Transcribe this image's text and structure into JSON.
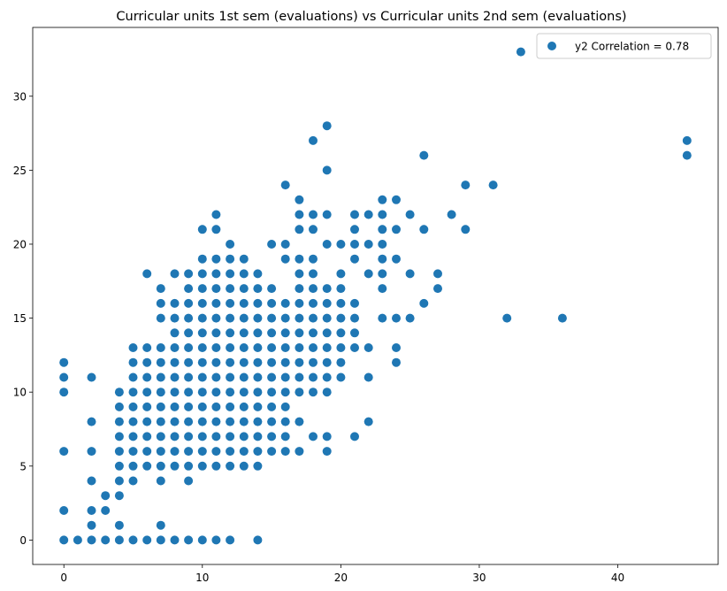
{
  "chart_data": {
    "type": "scatter",
    "title": "Curricular units 1st sem (evaluations) vs Curricular units 2nd sem (evaluations)",
    "xlabel": "",
    "ylabel": "",
    "xlim": [
      -2.25,
      47.25
    ],
    "ylim": [
      -1.65,
      34.65
    ],
    "xticks": [
      0,
      10,
      20,
      30,
      40
    ],
    "yticks": [
      0,
      5,
      10,
      15,
      20,
      25,
      30
    ],
    "grid": false,
    "legend": {
      "placement": "top-right",
      "entries": [
        "y2 Correlation = 0.78"
      ]
    },
    "series": [
      {
        "name": "y2 Correlation = 0.78",
        "color": "#1f77b4",
        "points": [
          [
            0,
            0
          ],
          [
            0,
            2
          ],
          [
            0,
            6
          ],
          [
            0,
            10
          ],
          [
            0,
            11
          ],
          [
            0,
            12
          ],
          [
            1,
            0
          ],
          [
            2,
            0
          ],
          [
            2,
            1
          ],
          [
            2,
            2
          ],
          [
            2,
            4
          ],
          [
            2,
            6
          ],
          [
            2,
            8
          ],
          [
            2,
            11
          ],
          [
            3,
            0
          ],
          [
            3,
            2
          ],
          [
            3,
            3
          ],
          [
            4,
            0
          ],
          [
            4,
            1
          ],
          [
            4,
            3
          ],
          [
            4,
            4
          ],
          [
            4,
            5
          ],
          [
            4,
            6
          ],
          [
            4,
            7
          ],
          [
            4,
            8
          ],
          [
            4,
            9
          ],
          [
            4,
            10
          ],
          [
            5,
            0
          ],
          [
            5,
            4
          ],
          [
            5,
            5
          ],
          [
            5,
            6
          ],
          [
            5,
            7
          ],
          [
            5,
            8
          ],
          [
            5,
            9
          ],
          [
            5,
            10
          ],
          [
            5,
            11
          ],
          [
            5,
            12
          ],
          [
            5,
            13
          ],
          [
            6,
            0
          ],
          [
            6,
            5
          ],
          [
            6,
            6
          ],
          [
            6,
            7
          ],
          [
            6,
            8
          ],
          [
            6,
            9
          ],
          [
            6,
            10
          ],
          [
            6,
            11
          ],
          [
            6,
            12
          ],
          [
            6,
            13
          ],
          [
            6,
            18
          ],
          [
            7,
            0
          ],
          [
            7,
            1
          ],
          [
            7,
            4
          ],
          [
            7,
            5
          ],
          [
            7,
            6
          ],
          [
            7,
            7
          ],
          [
            7,
            8
          ],
          [
            7,
            9
          ],
          [
            7,
            10
          ],
          [
            7,
            11
          ],
          [
            7,
            12
          ],
          [
            7,
            13
          ],
          [
            7,
            15
          ],
          [
            7,
            16
          ],
          [
            7,
            17
          ],
          [
            8,
            0
          ],
          [
            8,
            5
          ],
          [
            8,
            6
          ],
          [
            8,
            7
          ],
          [
            8,
            8
          ],
          [
            8,
            9
          ],
          [
            8,
            10
          ],
          [
            8,
            11
          ],
          [
            8,
            12
          ],
          [
            8,
            13
          ],
          [
            8,
            14
          ],
          [
            8,
            15
          ],
          [
            8,
            16
          ],
          [
            8,
            18
          ],
          [
            9,
            0
          ],
          [
            9,
            4
          ],
          [
            9,
            5
          ],
          [
            9,
            6
          ],
          [
            9,
            7
          ],
          [
            9,
            8
          ],
          [
            9,
            9
          ],
          [
            9,
            10
          ],
          [
            9,
            11
          ],
          [
            9,
            12
          ],
          [
            9,
            13
          ],
          [
            9,
            14
          ],
          [
            9,
            15
          ],
          [
            9,
            16
          ],
          [
            9,
            17
          ],
          [
            9,
            18
          ],
          [
            10,
            0
          ],
          [
            10,
            5
          ],
          [
            10,
            6
          ],
          [
            10,
            7
          ],
          [
            10,
            8
          ],
          [
            10,
            9
          ],
          [
            10,
            10
          ],
          [
            10,
            11
          ],
          [
            10,
            12
          ],
          [
            10,
            13
          ],
          [
            10,
            14
          ],
          [
            10,
            15
          ],
          [
            10,
            16
          ],
          [
            10,
            17
          ],
          [
            10,
            18
          ],
          [
            10,
            19
          ],
          [
            10,
            21
          ],
          [
            11,
            0
          ],
          [
            11,
            5
          ],
          [
            11,
            6
          ],
          [
            11,
            7
          ],
          [
            11,
            8
          ],
          [
            11,
            9
          ],
          [
            11,
            10
          ],
          [
            11,
            11
          ],
          [
            11,
            12
          ],
          [
            11,
            13
          ],
          [
            11,
            14
          ],
          [
            11,
            15
          ],
          [
            11,
            16
          ],
          [
            11,
            17
          ],
          [
            11,
            18
          ],
          [
            11,
            19
          ],
          [
            11,
            21
          ],
          [
            11,
            22
          ],
          [
            12,
            0
          ],
          [
            12,
            5
          ],
          [
            12,
            6
          ],
          [
            12,
            7
          ],
          [
            12,
            8
          ],
          [
            12,
            9
          ],
          [
            12,
            10
          ],
          [
            12,
            11
          ],
          [
            12,
            12
          ],
          [
            12,
            13
          ],
          [
            12,
            14
          ],
          [
            12,
            15
          ],
          [
            12,
            16
          ],
          [
            12,
            17
          ],
          [
            12,
            18
          ],
          [
            12,
            19
          ],
          [
            12,
            20
          ],
          [
            13,
            5
          ],
          [
            13,
            6
          ],
          [
            13,
            7
          ],
          [
            13,
            8
          ],
          [
            13,
            9
          ],
          [
            13,
            10
          ],
          [
            13,
            11
          ],
          [
            13,
            12
          ],
          [
            13,
            13
          ],
          [
            13,
            14
          ],
          [
            13,
            15
          ],
          [
            13,
            16
          ],
          [
            13,
            17
          ],
          [
            13,
            18
          ],
          [
            13,
            19
          ],
          [
            14,
            0
          ],
          [
            14,
            5
          ],
          [
            14,
            6
          ],
          [
            14,
            7
          ],
          [
            14,
            8
          ],
          [
            14,
            9
          ],
          [
            14,
            10
          ],
          [
            14,
            11
          ],
          [
            14,
            12
          ],
          [
            14,
            13
          ],
          [
            14,
            14
          ],
          [
            14,
            15
          ],
          [
            14,
            16
          ],
          [
            14,
            17
          ],
          [
            14,
            18
          ],
          [
            15,
            6
          ],
          [
            15,
            7
          ],
          [
            15,
            8
          ],
          [
            15,
            9
          ],
          [
            15,
            10
          ],
          [
            15,
            11
          ],
          [
            15,
            12
          ],
          [
            15,
            13
          ],
          [
            15,
            14
          ],
          [
            15,
            15
          ],
          [
            15,
            16
          ],
          [
            15,
            17
          ],
          [
            15,
            20
          ],
          [
            16,
            6
          ],
          [
            16,
            7
          ],
          [
            16,
            8
          ],
          [
            16,
            9
          ],
          [
            16,
            10
          ],
          [
            16,
            11
          ],
          [
            16,
            12
          ],
          [
            16,
            13
          ],
          [
            16,
            14
          ],
          [
            16,
            15
          ],
          [
            16,
            16
          ],
          [
            16,
            19
          ],
          [
            16,
            20
          ],
          [
            16,
            24
          ],
          [
            17,
            6
          ],
          [
            17,
            8
          ],
          [
            17,
            10
          ],
          [
            17,
            11
          ],
          [
            17,
            12
          ],
          [
            17,
            13
          ],
          [
            17,
            14
          ],
          [
            17,
            15
          ],
          [
            17,
            16
          ],
          [
            17,
            17
          ],
          [
            17,
            18
          ],
          [
            17,
            19
          ],
          [
            17,
            21
          ],
          [
            17,
            22
          ],
          [
            17,
            23
          ],
          [
            18,
            7
          ],
          [
            18,
            10
          ],
          [
            18,
            11
          ],
          [
            18,
            12
          ],
          [
            18,
            13
          ],
          [
            18,
            14
          ],
          [
            18,
            15
          ],
          [
            18,
            16
          ],
          [
            18,
            17
          ],
          [
            18,
            18
          ],
          [
            18,
            19
          ],
          [
            18,
            21
          ],
          [
            18,
            22
          ],
          [
            18,
            27
          ],
          [
            19,
            6
          ],
          [
            19,
            7
          ],
          [
            19,
            10
          ],
          [
            19,
            11
          ],
          [
            19,
            12
          ],
          [
            19,
            13
          ],
          [
            19,
            14
          ],
          [
            19,
            15
          ],
          [
            19,
            16
          ],
          [
            19,
            17
          ],
          [
            19,
            20
          ],
          [
            19,
            22
          ],
          [
            19,
            25
          ],
          [
            19,
            28
          ],
          [
            20,
            11
          ],
          [
            20,
            12
          ],
          [
            20,
            13
          ],
          [
            20,
            14
          ],
          [
            20,
            15
          ],
          [
            20,
            16
          ],
          [
            20,
            17
          ],
          [
            20,
            18
          ],
          [
            20,
            20
          ],
          [
            21,
            7
          ],
          [
            21,
            13
          ],
          [
            21,
            14
          ],
          [
            21,
            15
          ],
          [
            21,
            16
          ],
          [
            21,
            19
          ],
          [
            21,
            20
          ],
          [
            21,
            21
          ],
          [
            21,
            22
          ],
          [
            22,
            8
          ],
          [
            22,
            11
          ],
          [
            22,
            13
          ],
          [
            22,
            18
          ],
          [
            22,
            20
          ],
          [
            22,
            22
          ],
          [
            23,
            15
          ],
          [
            23,
            17
          ],
          [
            23,
            18
          ],
          [
            23,
            19
          ],
          [
            23,
            20
          ],
          [
            23,
            21
          ],
          [
            23,
            22
          ],
          [
            23,
            23
          ],
          [
            24,
            12
          ],
          [
            24,
            13
          ],
          [
            24,
            15
          ],
          [
            24,
            19
          ],
          [
            24,
            21
          ],
          [
            24,
            23
          ],
          [
            25,
            15
          ],
          [
            25,
            18
          ],
          [
            25,
            22
          ],
          [
            26,
            16
          ],
          [
            26,
            21
          ],
          [
            26,
            26
          ],
          [
            27,
            17
          ],
          [
            27,
            18
          ],
          [
            28,
            22
          ],
          [
            29,
            21
          ],
          [
            29,
            24
          ],
          [
            31,
            24
          ],
          [
            32,
            15
          ],
          [
            33,
            33
          ],
          [
            36,
            15
          ],
          [
            45,
            26
          ],
          [
            45,
            27
          ]
        ]
      }
    ]
  }
}
